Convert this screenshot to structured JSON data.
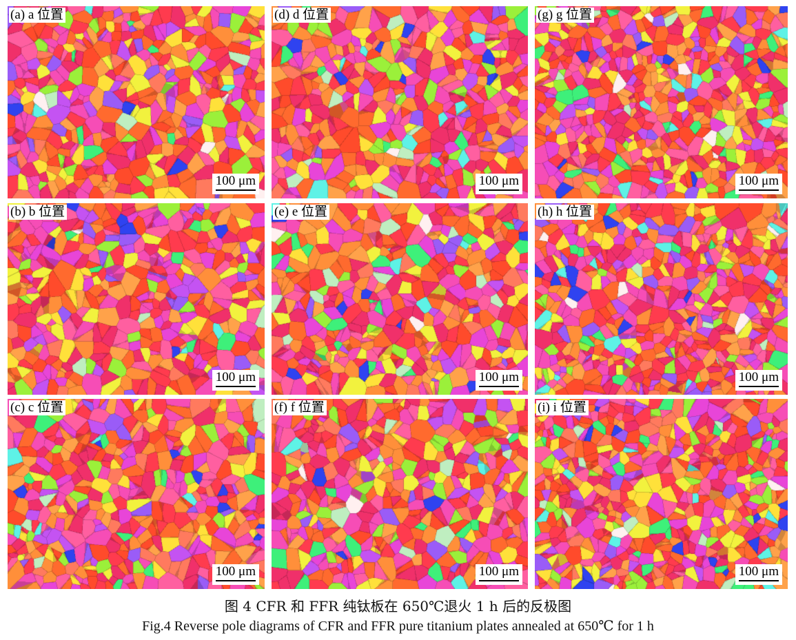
{
  "panels": [
    {
      "id": "a",
      "label": "(a) a 位置",
      "scale": "100 μm"
    },
    {
      "id": "d",
      "label": "(d) d 位置",
      "scale": "100 μm"
    },
    {
      "id": "g",
      "label": "(g) g 位置",
      "scale": "100 μm"
    },
    {
      "id": "b",
      "label": "(b) b 位置",
      "scale": "100 μm"
    },
    {
      "id": "e",
      "label": "(e) e 位置",
      "scale": "100 μm"
    },
    {
      "id": "h",
      "label": "(h) h 位置",
      "scale": "100 μm"
    },
    {
      "id": "c",
      "label": "(c) c 位置",
      "scale": "100 μm"
    },
    {
      "id": "f",
      "label": "(f) f 位置",
      "scale": "100 μm"
    },
    {
      "id": "i",
      "label": "(i) i 位置",
      "scale": "100 μm"
    }
  ],
  "grain_palette": [
    "#f0306a",
    "#ff3b4e",
    "#ff6a2e",
    "#ff8f3a",
    "#ffa24a",
    "#f64db6",
    "#e845d8",
    "#ff5fa0",
    "#c453f2",
    "#9a5cf7",
    "#2f43f0",
    "#ffe13a",
    "#f2f23e",
    "#9bf03a",
    "#3ef07a",
    "#5ef2e6",
    "#bfeec0",
    "#ff4b2b",
    "#ff7a5e",
    "#fff0f0"
  ],
  "caption": {
    "cn": "图 4  CFR 和 FFR 纯钛板在 650℃退火 1 h 后的反极图",
    "en": "Fig.4  Reverse pole diagrams of CFR and FFR pure titanium plates annealed at 650℃  for 1 h"
  }
}
